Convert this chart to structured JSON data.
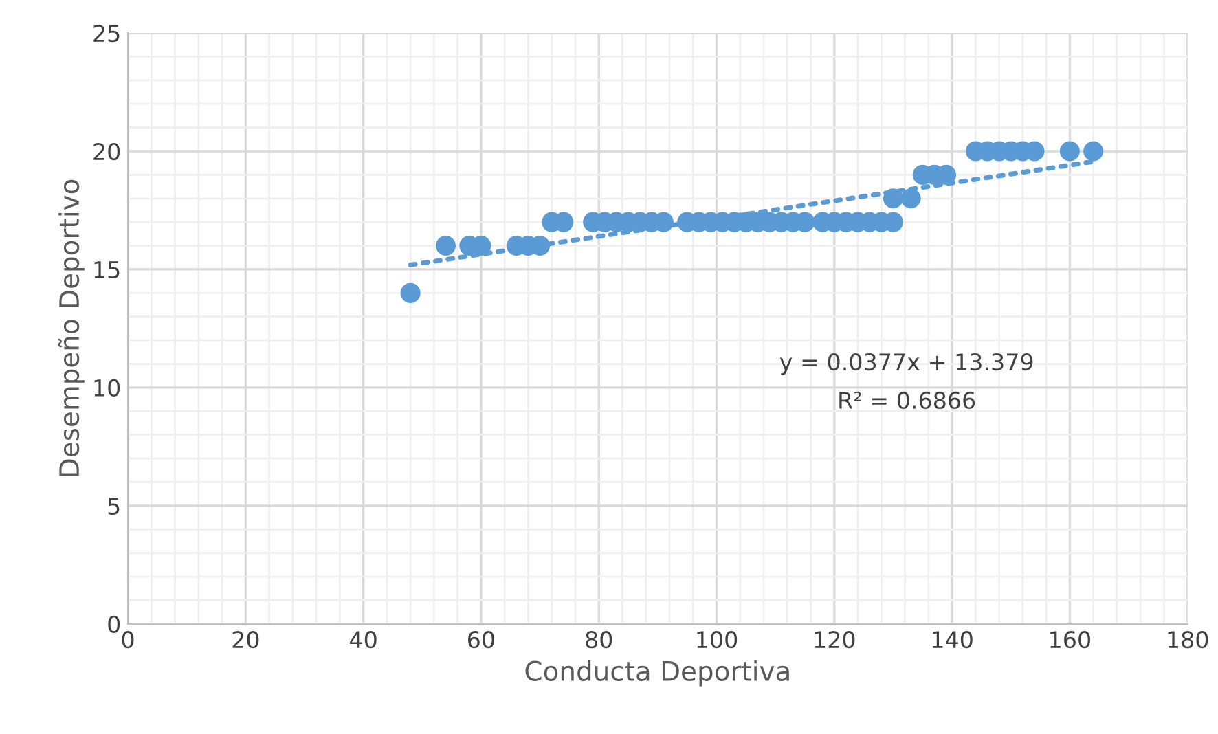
{
  "chart_data": {
    "type": "scatter",
    "xlabel": "Conducta Deportiva",
    "ylabel": "Desempeño Deportivo",
    "xlim": [
      0,
      180
    ],
    "xticks": [
      0,
      20,
      40,
      60,
      80,
      100,
      120,
      140,
      160,
      180
    ],
    "ylim": [
      0,
      25
    ],
    "yticks": [
      0,
      5,
      10,
      15,
      20,
      25
    ],
    "grid": true,
    "legend": false,
    "marker": "circle",
    "annotations": [
      "y = 0.0377x + 13.379",
      "R² = 0.6866"
    ],
    "series": [
      {
        "color": "#5b9bd5",
        "x": [
          48,
          54,
          58,
          60,
          66,
          68,
          70,
          72,
          74,
          79,
          81,
          83,
          85,
          87,
          89,
          91,
          95,
          97,
          99,
          101,
          103,
          105,
          107,
          109,
          111,
          113,
          115,
          118,
          120,
          122,
          124,
          126,
          128,
          130,
          130,
          133,
          135,
          137,
          139,
          144,
          146,
          148,
          150,
          152,
          154,
          160,
          164
        ],
        "values": [
          14,
          16,
          16,
          16,
          16,
          16,
          16,
          17,
          17,
          17,
          17,
          17,
          17,
          17,
          17,
          17,
          17,
          17,
          17,
          17,
          17,
          17,
          17,
          17,
          17,
          17,
          17,
          17,
          17,
          17,
          17,
          17,
          17,
          17,
          18,
          18,
          19,
          19,
          19,
          20,
          20,
          20,
          20,
          20,
          20,
          20,
          20
        ]
      },
      {
        "type": "line",
        "color": "#5b9bd5",
        "line_style": "dotted",
        "marker": "none",
        "x": [
          48,
          164
        ],
        "values": [
          15.19,
          19.56
        ]
      }
    ]
  }
}
